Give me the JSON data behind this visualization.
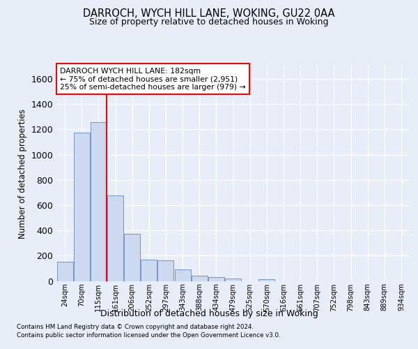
{
  "title1": "DARROCH, WYCH HILL LANE, WOKING, GU22 0AA",
  "title2": "Size of property relative to detached houses in Woking",
  "xlabel": "Distribution of detached houses by size in Woking",
  "ylabel": "Number of detached properties",
  "categories": [
    "24sqm",
    "70sqm",
    "115sqm",
    "161sqm",
    "206sqm",
    "252sqm",
    "297sqm",
    "343sqm",
    "388sqm",
    "434sqm",
    "479sqm",
    "525sqm",
    "570sqm",
    "616sqm",
    "661sqm",
    "707sqm",
    "752sqm",
    "798sqm",
    "843sqm",
    "889sqm",
    "934sqm"
  ],
  "values": [
    150,
    1175,
    1255,
    680,
    375,
    170,
    165,
    90,
    40,
    30,
    20,
    0,
    15,
    0,
    0,
    0,
    0,
    0,
    0,
    0,
    0
  ],
  "bar_color": "#ccd9ee",
  "bar_edge_color": "#7096c8",
  "red_line_x": 2.5,
  "annotation_title": "DARROCH WYCH HILL LANE: 182sqm",
  "annotation_line1": "← 75% of detached houses are smaller (2,951)",
  "annotation_line2": "25% of semi-detached houses are larger (979) →",
  "ylim": [
    0,
    1700
  ],
  "yticks": [
    0,
    200,
    400,
    600,
    800,
    1000,
    1200,
    1400,
    1600
  ],
  "footnote1": "Contains HM Land Registry data © Crown copyright and database right 2024.",
  "footnote2": "Contains public sector information licensed under the Open Government Licence v3.0.",
  "bg_color": "#e8eef8",
  "grid_color": "#ffffff"
}
